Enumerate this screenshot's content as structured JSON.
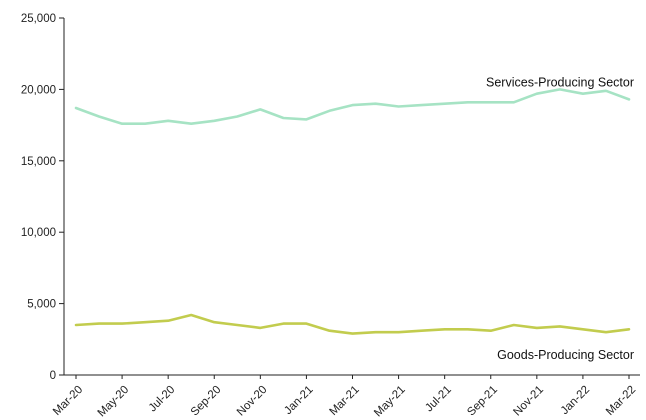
{
  "chart_data": {
    "type": "line",
    "title": "",
    "xlabel": "",
    "ylabel": "",
    "ylim": [
      0,
      25000
    ],
    "yticks": [
      0,
      5000,
      10000,
      15000,
      20000,
      25000
    ],
    "ytick_labels": [
      "0",
      "5,000",
      "10,000",
      "15,000",
      "20,000",
      "25,000"
    ],
    "xtick_labels": [
      "Mar-20",
      "May-20",
      "Jul-20",
      "Sep-20",
      "Nov-20",
      "Jan-21",
      "Mar-21",
      "May-21",
      "Jul-21",
      "Sep-21",
      "Nov-21",
      "Jan-22",
      "Mar-22"
    ],
    "x": [
      "Mar-20",
      "Apr-20",
      "May-20",
      "Jun-20",
      "Jul-20",
      "Aug-20",
      "Sep-20",
      "Oct-20",
      "Nov-20",
      "Dec-20",
      "Jan-21",
      "Feb-21",
      "Mar-21",
      "Apr-21",
      "May-21",
      "Jun-21",
      "Jul-21",
      "Aug-21",
      "Sep-21",
      "Oct-21",
      "Nov-21",
      "Dec-21",
      "Jan-22",
      "Feb-22",
      "Mar-22"
    ],
    "grid": false,
    "series": [
      {
        "name": "Services-Producing Sector",
        "color": "#a6e3c4",
        "values": [
          18700,
          18100,
          17600,
          17600,
          17800,
          17600,
          17800,
          18100,
          18600,
          18000,
          17900,
          18500,
          18900,
          19000,
          18800,
          18900,
          19000,
          19100,
          19100,
          19100,
          19700,
          20000,
          19700,
          19900,
          19300
        ]
      },
      {
        "name": "Goods-Producing Sector",
        "color": "#c2cc4e",
        "values": [
          3500,
          3600,
          3600,
          3700,
          3800,
          4200,
          3700,
          3500,
          3300,
          3600,
          3600,
          3100,
          2900,
          3000,
          3000,
          3100,
          3200,
          3200,
          3100,
          3500,
          3300,
          3400,
          3200,
          3000,
          3200
        ]
      }
    ]
  }
}
